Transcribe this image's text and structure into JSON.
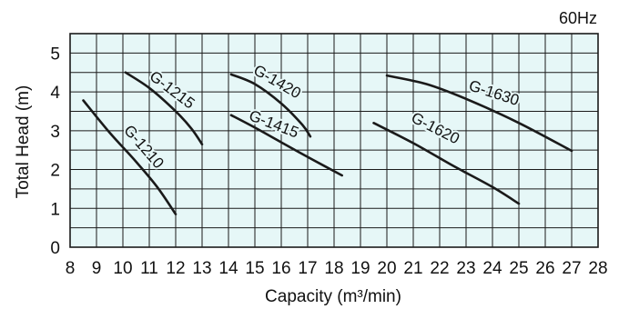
{
  "chart_data": {
    "type": "line",
    "frequency_label": "60Hz",
    "xlabel": "Capacity (m³/min)",
    "ylabel": "Total Head (m)",
    "xlim": [
      8,
      28
    ],
    "ylim": [
      0,
      5.5
    ],
    "x_ticks": [
      "8",
      "9",
      "10",
      "11",
      "12",
      "13",
      "14",
      "15",
      "16",
      "17",
      "18",
      "19",
      "20",
      "21",
      "22",
      "23",
      "24",
      "25",
      "26",
      "27",
      "28"
    ],
    "y_ticks": [
      "0",
      "1",
      "2",
      "3",
      "4",
      "5"
    ],
    "grid": true,
    "background_color": "#e6f7f7",
    "line_color": "#1a1a1a",
    "series": [
      {
        "name": "G-1210",
        "points": [
          [
            8.5,
            3.78
          ],
          [
            9.5,
            2.95
          ],
          [
            10.5,
            2.2
          ],
          [
            11.3,
            1.55
          ],
          [
            12.0,
            0.85
          ]
        ]
      },
      {
        "name": "G-1215",
        "points": [
          [
            10.1,
            4.5
          ],
          [
            11.0,
            4.1
          ],
          [
            12.0,
            3.5
          ],
          [
            12.6,
            3.05
          ],
          [
            13.0,
            2.65
          ]
        ]
      },
      {
        "name": "G-1415",
        "points": [
          [
            14.1,
            3.4
          ],
          [
            15.0,
            3.08
          ],
          [
            16.0,
            2.7
          ],
          [
            17.2,
            2.25
          ],
          [
            18.3,
            1.85
          ]
        ]
      },
      {
        "name": "G-1420",
        "points": [
          [
            14.1,
            4.45
          ],
          [
            15.0,
            4.2
          ],
          [
            16.0,
            3.7
          ],
          [
            16.8,
            3.15
          ],
          [
            17.1,
            2.85
          ]
        ]
      },
      {
        "name": "G-1620",
        "points": [
          [
            19.5,
            3.2
          ],
          [
            21.0,
            2.68
          ],
          [
            22.5,
            2.1
          ],
          [
            24.0,
            1.55
          ],
          [
            25.0,
            1.12
          ]
        ]
      },
      {
        "name": "G-1630",
        "points": [
          [
            20.0,
            4.42
          ],
          [
            21.5,
            4.2
          ],
          [
            23.0,
            3.82
          ],
          [
            25.0,
            3.2
          ],
          [
            27.0,
            2.48
          ]
        ]
      }
    ],
    "curve_labels": [
      {
        "text": "G-1210",
        "x": 10.65,
        "y": 2.5,
        "angle": 49
      },
      {
        "text": "G-1215",
        "x": 11.75,
        "y": 3.95,
        "angle": 37
      },
      {
        "text": "G-1415",
        "x": 15.65,
        "y": 3.05,
        "angle": 21
      },
      {
        "text": "G-1420",
        "x": 15.75,
        "y": 4.15,
        "angle": 30
      },
      {
        "text": "G-1620",
        "x": 21.75,
        "y": 2.95,
        "angle": 27
      },
      {
        "text": "G-1630",
        "x": 24.0,
        "y": 3.85,
        "angle": 18
      }
    ]
  }
}
